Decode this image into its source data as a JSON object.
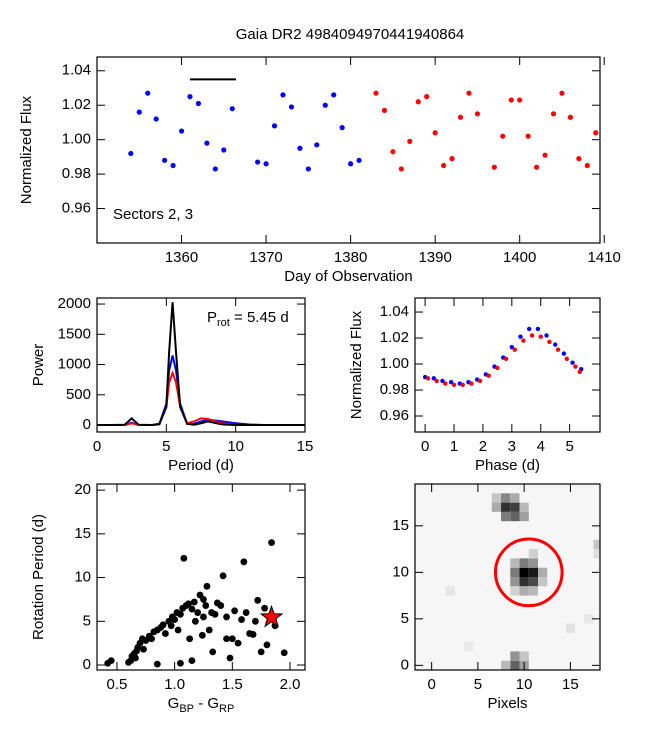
{
  "chart_data": [
    {
      "type": "scatter",
      "title": "Gaia DR2 4984094970441940864",
      "x_label": "Day of Observation",
      "y_label": "Normalized Flux",
      "annotation": "Sectors 2, 3",
      "xlim": [
        1350,
        1409.5
      ],
      "ylim": [
        0.94,
        1.048
      ],
      "xticks": [
        1360,
        1370,
        1380,
        1390,
        1400,
        1410
      ],
      "yticks": [
        0.96,
        0.98,
        {
          "value": 1,
          "label": "1.00"
        },
        1.02,
        1.04
      ],
      "series": [
        {
          "color": "#0000ff",
          "x": [
            1354,
            1355,
            1356,
            1357,
            1358,
            1359,
            1360,
            1361,
            1362,
            1363,
            1364,
            1365,
            1366,
            1369,
            1370,
            1371,
            1372,
            1373,
            1374,
            1375,
            1376,
            1377,
            1378,
            1379,
            1380,
            1381
          ],
          "values": [
            0.992,
            1.016,
            1.027,
            1.012,
            0.988,
            0.985,
            1.005,
            1.025,
            1.021,
            0.998,
            0.983,
            0.994,
            1.018,
            0.987,
            0.986,
            1.008,
            1.026,
            1.019,
            0.995,
            0.983,
            0.997,
            1.02,
            1.026,
            1.007,
            0.986,
            0.988
          ]
        },
        {
          "color": "#ff0000",
          "x": [
            1383,
            1384,
            1385,
            1386,
            1387,
            1388,
            1389,
            1390,
            1391,
            1392,
            1393,
            1394,
            1395,
            1397,
            1398,
            1399,
            1400,
            1401,
            1402,
            1403,
            1404,
            1405,
            1406,
            1407,
            1408,
            1409
          ],
          "values": [
            1.027,
            1.017,
            0.993,
            0.983,
            0.999,
            1.022,
            1.025,
            1.004,
            0.985,
            0.989,
            1.013,
            1.027,
            1.015,
            0.984,
            1.002,
            1.023,
            1.023,
            1.002,
            0.984,
            0.991,
            1.015,
            1.027,
            1.013,
            0.989,
            0.985,
            1.004
          ]
        }
      ],
      "bar": {
        "x": [
          1361,
          1366.45
        ],
        "y": 1.035,
        "color": "#000000"
      }
    },
    {
      "type": "line",
      "x_label": "Period (d)",
      "y_label": "Power",
      "annotation": [
        {
          "text": "P"
        },
        {
          "text": "rot",
          "sub": true
        },
        {
          "text": " = 5.45 d"
        }
      ],
      "xlim": [
        0,
        15
      ],
      "ylim": [
        -115,
        2100
      ],
      "xticks": [
        0,
        5,
        10,
        15
      ],
      "yticks": [
        0,
        500,
        1000,
        1500,
        2000
      ],
      "x": [
        0,
        1,
        2,
        2.5,
        3,
        4,
        4.5,
        5,
        5.2,
        5.45,
        5.7,
        6,
        6.5,
        7,
        7.5,
        8,
        9,
        10,
        11,
        12,
        13,
        14,
        15
      ],
      "series": [
        {
          "color": "#0000ff",
          "values": [
            0,
            0,
            0,
            40,
            0,
            0,
            20,
            350,
            900,
            1150,
            900,
            350,
            20,
            20,
            60,
            90,
            60,
            30,
            10,
            0,
            0,
            0,
            0
          ]
        },
        {
          "color": "#ff0000",
          "values": [
            0,
            0,
            0,
            30,
            0,
            0,
            10,
            300,
            700,
            860,
            700,
            300,
            30,
            60,
            110,
            100,
            30,
            0,
            0,
            0,
            0,
            0,
            0
          ]
        },
        {
          "color": "#000000",
          "values": [
            0,
            0,
            5,
            110,
            5,
            0,
            20,
            300,
            1200,
            2030,
            1200,
            300,
            20,
            5,
            30,
            60,
            10,
            0,
            0,
            0,
            0,
            0,
            0
          ]
        }
      ]
    },
    {
      "type": "scatter",
      "x_label": "Phase (d)",
      "y_label": "Normalized Flux",
      "xlim": [
        -0.35,
        6.05
      ],
      "ylim": [
        0.9477,
        1.0508
      ],
      "xticks": [
        0,
        1,
        2,
        3,
        4,
        5
      ],
      "yticks": [
        0.96,
        0.98,
        {
          "value": 1,
          "label": "1.00"
        },
        1.02,
        1.04
      ],
      "series": [
        {
          "color": "#0000ff",
          "x": [
            0,
            0.3,
            0.6,
            0.9,
            1.2,
            1.5,
            1.8,
            2.1,
            2.4,
            2.7,
            3,
            3.3,
            3.6,
            3.9,
            4.2,
            4.5,
            4.8,
            5.1,
            5.4
          ],
          "values": [
            0.99,
            0.989,
            0.987,
            0.986,
            0.985,
            0.986,
            0.988,
            0.992,
            0.998,
            1.005,
            1.013,
            1.021,
            1.027,
            1.027,
            1.022,
            1.015,
            1.008,
            1.001,
            0.996
          ]
        },
        {
          "color": "#ff0000",
          "x": [
            0.1,
            0.4,
            0.7,
            1,
            1.3,
            1.6,
            1.9,
            2.2,
            2.5,
            2.8,
            3.1,
            3.4,
            3.7,
            4,
            4.3,
            4.6,
            4.9,
            5.2,
            5.35
          ],
          "values": [
            0.989,
            0.987,
            0.985,
            0.984,
            0.984,
            0.985,
            0.987,
            0.991,
            0.997,
            1.004,
            1.011,
            1.018,
            1.022,
            1.021,
            1.017,
            1.011,
            1.004,
            0.998,
            0.994
          ]
        }
      ]
    },
    {
      "type": "scatter",
      "x_label": [
        {
          "text": "G"
        },
        {
          "text": "BP",
          "sub": true
        },
        {
          "text": " - G"
        },
        {
          "text": "RP",
          "sub": true
        }
      ],
      "y_label": "Rotation Period (d)",
      "xlim": [
        0.327,
        2.13
      ],
      "ylim": [
        -0.57,
        20.7
      ],
      "xticks": [
        0.5,
        {
          "value": 1,
          "label": "1.0"
        },
        1.5,
        {
          "value": 2,
          "label": "2.0"
        }
      ],
      "yticks": [
        0,
        5,
        10,
        15,
        20
      ],
      "series": [
        {
          "color": "#000000",
          "x": [
            0.42,
            0.45,
            0.6,
            0.62,
            0.63,
            0.65,
            0.66,
            0.67,
            0.68,
            0.7,
            0.72,
            0.73,
            0.75,
            0.78,
            0.8,
            0.82,
            0.85,
            0.88,
            0.9,
            0.92,
            0.95,
            0.97,
            0.98,
            1.0,
            1.02,
            1.03,
            1.05,
            1.07,
            1.08,
            1.1,
            1.12,
            1.13,
            1.15,
            1.17,
            1.18,
            1.2,
            1.22,
            1.24,
            1.25,
            1.27,
            1.28,
            1.3,
            1.32,
            1.33,
            1.35,
            1.37,
            1.4,
            1.42,
            1.45,
            1.48,
            1.5,
            1.52,
            1.55,
            1.58,
            1.6,
            1.62,
            1.65,
            1.68,
            1.7,
            1.72,
            1.75,
            1.78,
            1.8,
            1.84,
            1.87,
            1.95,
            1.05,
            1.15,
            0.85,
            1.45,
            1.25
          ],
          "values": [
            0.2,
            0.5,
            0.3,
            0.5,
            1.0,
            1.3,
            0.8,
            1.6,
            2.0,
            2.5,
            3.0,
            1.8,
            2.8,
            3.3,
            3.0,
            3.8,
            4.0,
            4.3,
            4.6,
            3.6,
            5.0,
            4.5,
            5.5,
            5.2,
            6.0,
            4.0,
            5.8,
            6.5,
            12.2,
            6.8,
            7.0,
            3.0,
            6.4,
            7.2,
            5.0,
            6.0,
            8.0,
            3.4,
            7.5,
            6.8,
            9.0,
            4.0,
            6.0,
            1.5,
            5.8,
            7.1,
            6.8,
            10.2,
            5.5,
            0.8,
            3.0,
            6.2,
            2.5,
            5.2,
            11.8,
            6.0,
            3.6,
            3.5,
            5.0,
            7.4,
            1.5,
            6.5,
            2.3,
            14.0,
            4.5,
            1.4,
            0.2,
            0.5,
            0.1,
            3.0,
            5.5
          ]
        }
      ],
      "highlight": {
        "x": 1.84,
        "y": 5.45,
        "color": "#ff0000"
      }
    },
    {
      "type": "heatmap",
      "x_label": "Pixels",
      "xlim": [
        -1.8,
        18.2
      ],
      "ylim": [
        -0.5,
        19.5
      ],
      "xticks": [
        0,
        5,
        10,
        15
      ],
      "yticks": [
        0,
        5,
        10,
        15
      ],
      "cells": [
        {
          "x": 10,
          "y": 10,
          "value": 1
        },
        {
          "x": 11,
          "y": 10,
          "value": 0.9
        },
        {
          "x": 10,
          "y": 9,
          "value": 0.8
        },
        {
          "x": 11,
          "y": 9,
          "value": 0.7
        },
        {
          "x": 9,
          "y": 10,
          "value": 0.5
        },
        {
          "x": 10,
          "y": 11,
          "value": 0.5
        },
        {
          "x": 11,
          "y": 11,
          "value": 0.4
        },
        {
          "x": 9,
          "y": 9,
          "value": 0.4
        },
        {
          "x": 12,
          "y": 10,
          "value": 0.3
        },
        {
          "x": 10,
          "y": 8,
          "value": 0.3
        },
        {
          "x": 11,
          "y": 8,
          "value": 0.25
        },
        {
          "x": 9,
          "y": 11,
          "value": 0.25
        },
        {
          "x": 12,
          "y": 9,
          "value": 0.2
        },
        {
          "x": 11,
          "y": 12,
          "value": 0.15
        },
        {
          "x": 9,
          "y": 8,
          "value": 0.15
        },
        {
          "x": 8,
          "y": 17,
          "value": 0.8
        },
        {
          "x": 9,
          "y": 17,
          "value": 0.75
        },
        {
          "x": 8,
          "y": 18,
          "value": 0.45
        },
        {
          "x": 9,
          "y": 16,
          "value": 0.6
        },
        {
          "x": 8,
          "y": 16,
          "value": 0.5
        },
        {
          "x": 7,
          "y": 17,
          "value": 0.3
        },
        {
          "x": 9,
          "y": 18,
          "value": 0.3
        },
        {
          "x": 10,
          "y": 16,
          "value": 0.35
        },
        {
          "x": 10,
          "y": 17,
          "value": 0.25
        },
        {
          "x": 7,
          "y": 18,
          "value": 0.2
        },
        {
          "x": 9,
          "y": 0,
          "value": 0.6
        },
        {
          "x": 9,
          "y": 1,
          "value": 0.4
        },
        {
          "x": 10,
          "y": 0,
          "value": 0.35
        },
        {
          "x": 8,
          "y": 0,
          "value": 0.25
        },
        {
          "x": 10,
          "y": 1,
          "value": 0.2
        },
        {
          "x": 18,
          "y": 13,
          "value": 0.2
        },
        {
          "x": 18,
          "y": 12,
          "value": 0.1
        },
        {
          "x": 15,
          "y": 4,
          "value": 0.08
        },
        {
          "x": 17,
          "y": 5,
          "value": 0.06
        },
        {
          "x": 2,
          "y": 8,
          "value": 0.06
        },
        {
          "x": 4,
          "y": 2,
          "value": 0.05
        }
      ],
      "circle": {
        "x": 10.5,
        "y": 10,
        "r": 3.6,
        "color": "#ff0000"
      }
    }
  ]
}
